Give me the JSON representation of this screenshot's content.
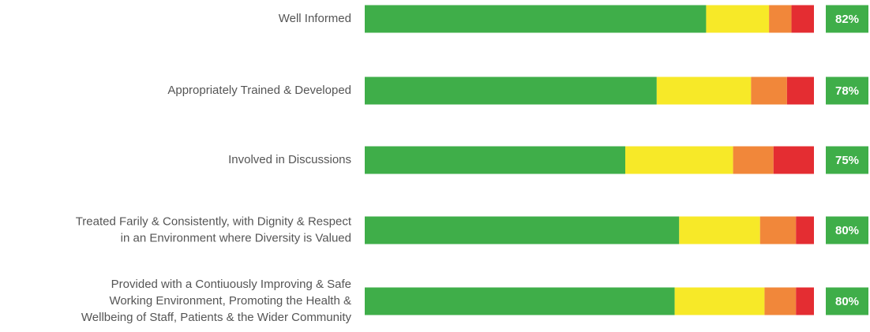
{
  "chart_data": {
    "type": "stacked-bar",
    "categories": [
      [
        "Well Informed"
      ],
      [
        "Appropriately Trained & Developed"
      ],
      [
        "Involved in Discussions"
      ],
      [
        "Treated Farily & Consistently, with Dignity & Respect",
        "in an Environment where Diversity is Valued"
      ],
      [
        "Provided with a Contiuously Improving & Safe",
        "Working Environment, Promoting the Health &",
        "Wellbeing of Staff, Patients & the Wider Community"
      ]
    ],
    "series": [
      {
        "color": "#3fae49",
        "values": [
          76,
          65,
          58,
          70,
          69
        ]
      },
      {
        "color": "#f7e928",
        "values": [
          14,
          21,
          24,
          18,
          20
        ]
      },
      {
        "color": "#f1873a",
        "values": [
          5,
          8,
          9,
          8,
          7
        ]
      },
      {
        "color": "#e42d32",
        "values": [
          5,
          6,
          9,
          4,
          4
        ]
      }
    ],
    "scores": {
      "color": "#3fae49",
      "values": [
        82,
        78,
        75,
        80,
        80
      ],
      "value_labels": [
        "82%",
        "78%",
        "75%",
        "80%",
        "80%"
      ]
    }
  }
}
